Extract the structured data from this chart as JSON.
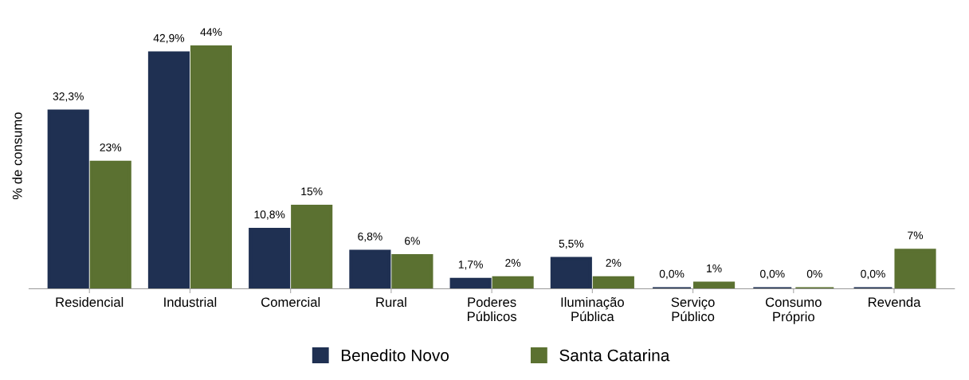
{
  "chart_data": {
    "type": "bar",
    "ylabel": "% de consumo",
    "categories": [
      "Residencial",
      "Industrial",
      "Comercial",
      "Rural",
      "Poderes\nPúblicos",
      "Iluminação\nPública",
      "Serviço\nPúblico",
      "Consumo\nPróprio",
      "Revenda"
    ],
    "series": [
      {
        "name": "Benedito Novo",
        "color": "#1f3052",
        "values": [
          32.3,
          42.9,
          10.8,
          6.8,
          1.7,
          5.5,
          0.0,
          0.0,
          0.0
        ],
        "value_labels": [
          "32,3%",
          "42,9%",
          "10,8%",
          "6,8%",
          "1,7%",
          "5,5%",
          "0,0%",
          "0,0%",
          "0,0%"
        ]
      },
      {
        "name": "Santa Catarina",
        "color": "#5b7131",
        "values": [
          23,
          44,
          15,
          6,
          2,
          2,
          1,
          0,
          7
        ],
        "value_labels": [
          "23%",
          "44%",
          "15%",
          "6%",
          "2%",
          "2%",
          "1%",
          "0%",
          "7%"
        ]
      }
    ],
    "legend": "bottom",
    "grid": false
  }
}
